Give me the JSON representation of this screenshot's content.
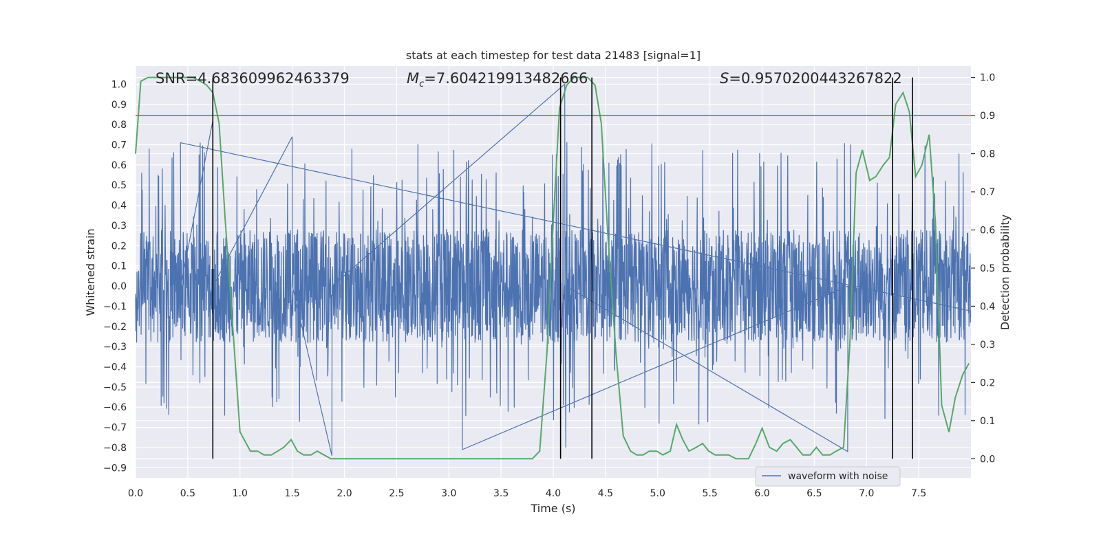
{
  "chart_data": {
    "type": "line",
    "title": "stats at each timestep for test data 21483 [signal=1]",
    "xlabel": "Time (s)",
    "ylabel_left": "Whitened strain",
    "ylabel_right": "Detection probability",
    "xlim": [
      0.0,
      8.0
    ],
    "ylim_left": [
      -0.95,
      1.09
    ],
    "ylim_right": [
      -0.05,
      1.03
    ],
    "x_ticks": [
      0.0,
      0.5,
      1.0,
      1.5,
      2.0,
      2.5,
      3.0,
      3.5,
      4.0,
      4.5,
      5.0,
      5.5,
      6.0,
      6.5,
      7.0,
      7.5
    ],
    "x_tick_labels": [
      "0.0",
      "0.5",
      "1.0",
      "1.5",
      "2.0",
      "2.5",
      "3.0",
      "3.5",
      "4.0",
      "4.5",
      "5.0",
      "5.5",
      "6.0",
      "6.5",
      "7.0",
      "7.5"
    ],
    "y_left_ticks": [
      1.0,
      0.9,
      0.8,
      0.7,
      0.6,
      0.5,
      0.4,
      0.3,
      0.2,
      0.1,
      0.0,
      -0.1,
      -0.2,
      -0.3,
      -0.4,
      -0.5,
      -0.6,
      -0.7,
      -0.8,
      -0.9
    ],
    "y_left_tick_labels": [
      "1.0",
      "0.9",
      "0.8",
      "0.7",
      "0.6",
      "0.5",
      "0.4",
      "0.3",
      "0.2",
      "0.1",
      "0.0",
      "−0.1",
      "−0.2",
      "−0.3",
      "−0.4",
      "−0.5",
      "−0.6",
      "−0.7",
      "−0.8",
      "−0.9"
    ],
    "y_right_ticks": [
      1.0,
      0.9,
      0.8,
      0.7,
      0.6,
      0.5,
      0.4,
      0.3,
      0.2,
      0.1,
      0.0
    ],
    "y_right_tick_labels": [
      "1.0",
      "0.9",
      "0.8",
      "0.7",
      "0.6",
      "0.5",
      "0.4",
      "0.3",
      "0.2",
      "0.1",
      "0.0"
    ],
    "annotations": {
      "snr": "SNR=4.683609962463379",
      "mc_symbol": "M",
      "mc_sub": "c",
      "mc_value": "=7.604219913482666",
      "s_symbol": "S",
      "s_value": "=0.9570200443267822"
    },
    "threshold_right": 0.9,
    "vertical_lines_x": [
      0.74,
      4.07,
      4.37,
      7.25,
      7.44
    ],
    "waveform": {
      "name": "waveform with noise",
      "color": "#4c72b0",
      "duration": 8.0,
      "envelope": {
        "core_min": -0.28,
        "core_max": 0.28,
        "spike_max": 0.72,
        "spike_min": -0.69
      },
      "notable_spikes": [
        {
          "x": 0.43,
          "y": 0.71
        },
        {
          "x": 0.74,
          "y": 0.82
        },
        {
          "x": 1.5,
          "y": 0.74
        },
        {
          "x": 1.88,
          "y": -0.84
        },
        {
          "x": 4.11,
          "y": 1.0
        },
        {
          "x": 4.12,
          "y": -0.8
        },
        {
          "x": 6.82,
          "y": -0.82
        },
        {
          "x": 3.13,
          "y": -0.81
        }
      ]
    },
    "probability": {
      "color": "#55a868",
      "x": [
        0.0,
        0.05,
        0.12,
        0.25,
        0.4,
        0.55,
        0.62,
        0.68,
        0.74,
        0.8,
        0.86,
        0.93,
        1.0,
        1.1,
        1.17,
        1.23,
        1.3,
        1.36,
        1.42,
        1.49,
        1.55,
        1.61,
        1.68,
        1.74,
        1.87,
        2.0,
        2.15,
        2.3,
        2.5,
        2.7,
        2.85,
        3.0,
        3.2,
        3.4,
        3.6,
        3.8,
        3.87,
        3.94,
        4.0,
        4.06,
        4.13,
        4.2,
        4.27,
        4.33,
        4.4,
        4.46,
        4.52,
        4.6,
        4.67,
        4.74,
        4.8,
        4.86,
        4.92,
        4.99,
        5.05,
        5.12,
        5.18,
        5.24,
        5.3,
        5.37,
        5.43,
        5.49,
        5.55,
        5.62,
        5.68,
        5.75,
        5.87,
        5.94,
        6.0,
        6.07,
        6.14,
        6.2,
        6.27,
        6.33,
        6.39,
        6.46,
        6.52,
        6.58,
        6.65,
        6.71,
        6.78,
        6.84,
        6.9,
        6.96,
        7.03,
        7.09,
        7.16,
        7.22,
        7.28,
        7.35,
        7.41,
        7.47,
        7.53,
        7.6,
        7.66,
        7.72,
        7.79,
        7.85,
        7.92,
        7.98
      ],
      "y": [
        0.8,
        0.99,
        1.0,
        1.0,
        1.0,
        1.0,
        0.99,
        0.98,
        0.96,
        0.88,
        0.62,
        0.35,
        0.07,
        0.02,
        0.02,
        0.01,
        0.01,
        0.02,
        0.03,
        0.05,
        0.02,
        0.01,
        0.01,
        0.02,
        0.0,
        0.0,
        0.0,
        0.0,
        0.0,
        0.0,
        0.0,
        0.0,
        0.0,
        0.0,
        0.0,
        0.0,
        0.02,
        0.28,
        0.62,
        0.92,
        0.98,
        1.0,
        1.0,
        1.0,
        0.98,
        0.88,
        0.6,
        0.28,
        0.06,
        0.02,
        0.01,
        0.01,
        0.02,
        0.02,
        0.01,
        0.02,
        0.09,
        0.05,
        0.02,
        0.03,
        0.04,
        0.02,
        0.01,
        0.01,
        0.01,
        0.0,
        0.0,
        0.04,
        0.08,
        0.03,
        0.02,
        0.04,
        0.05,
        0.03,
        0.01,
        0.01,
        0.03,
        0.01,
        0.01,
        0.02,
        0.03,
        0.3,
        0.75,
        0.81,
        0.73,
        0.74,
        0.77,
        0.79,
        0.93,
        0.96,
        0.91,
        0.74,
        0.77,
        0.85,
        0.62,
        0.14,
        0.07,
        0.16,
        0.22,
        0.25
      ]
    }
  }
}
